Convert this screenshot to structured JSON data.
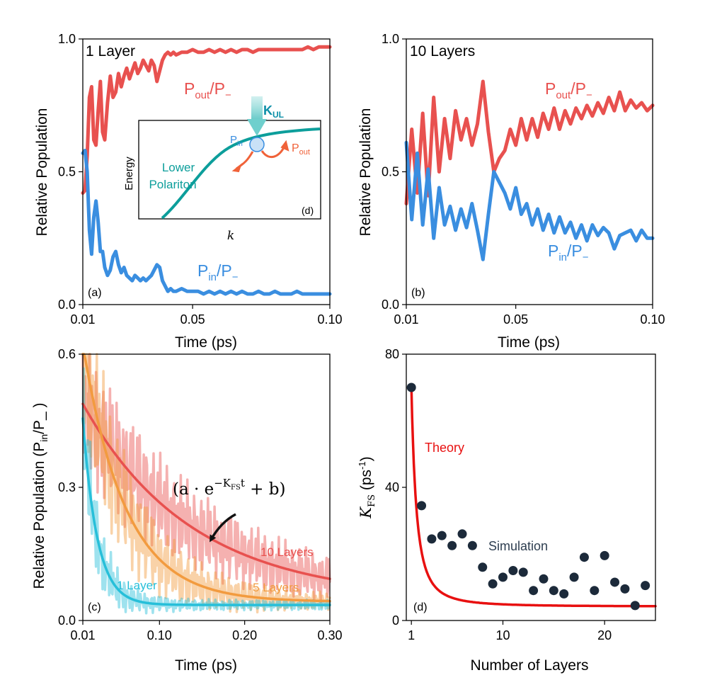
{
  "colors": {
    "out": "#e8514f",
    "in": "#3a8ee0",
    "teal": "#0c9e9b",
    "cyan": "#27bfd9",
    "orange": "#f29b3f",
    "red": "#e81010",
    "dot": "#1c2a3a"
  },
  "chart_data": [
    {
      "panel": "a",
      "type": "line",
      "panel_label": "(a)",
      "header": "1 Layer",
      "xlabel": "Time (ps)",
      "ylabel": "Relative Population",
      "xlim": [
        0.01,
        0.1
      ],
      "ylim": [
        0.0,
        1.0
      ],
      "xticks": [
        "0.01",
        "0.05",
        "0.10"
      ],
      "yticks": [
        "0.0",
        "0.5",
        "1.0"
      ],
      "series": [
        {
          "name": "Pout/P-",
          "label_main": "P",
          "label_sub": "out",
          "label_tail": "/P",
          "label_sub2": "−",
          "color_key": "out",
          "x": [
            0.01,
            0.0108,
            0.0116,
            0.0124,
            0.0132,
            0.014,
            0.0148,
            0.0156,
            0.0164,
            0.0172,
            0.018,
            0.019,
            0.02,
            0.021,
            0.022,
            0.023,
            0.024,
            0.025,
            0.026,
            0.027,
            0.028,
            0.029,
            0.03,
            0.031,
            0.032,
            0.033,
            0.034,
            0.035,
            0.036,
            0.037,
            0.038,
            0.039,
            0.04,
            0.041,
            0.042,
            0.043,
            0.044,
            0.046,
            0.048,
            0.05,
            0.052,
            0.054,
            0.056,
            0.058,
            0.06,
            0.062,
            0.064,
            0.066,
            0.068,
            0.07,
            0.072,
            0.074,
            0.076,
            0.078,
            0.08,
            0.082,
            0.084,
            0.086,
            0.088,
            0.09,
            0.092,
            0.094,
            0.096,
            0.098,
            0.1
          ],
          "values": [
            0.42,
            0.43,
            0.56,
            0.78,
            0.82,
            0.62,
            0.6,
            0.73,
            0.84,
            0.65,
            0.62,
            0.76,
            0.86,
            0.78,
            0.8,
            0.87,
            0.82,
            0.86,
            0.89,
            0.85,
            0.88,
            0.91,
            0.87,
            0.89,
            0.92,
            0.9,
            0.88,
            0.92,
            0.9,
            0.84,
            0.88,
            0.92,
            0.94,
            0.95,
            0.94,
            0.95,
            0.94,
            0.95,
            0.95,
            0.96,
            0.95,
            0.95,
            0.96,
            0.95,
            0.96,
            0.95,
            0.96,
            0.95,
            0.96,
            0.96,
            0.95,
            0.96,
            0.96,
            0.96,
            0.96,
            0.96,
            0.96,
            0.96,
            0.96,
            0.96,
            0.97,
            0.96,
            0.97,
            0.97,
            0.97
          ]
        },
        {
          "name": "Pin/P-",
          "label_main": "P",
          "label_sub": "in",
          "label_tail": "/P",
          "label_sub2": "−",
          "color_key": "in",
          "x": [
            0.01,
            0.0108,
            0.0116,
            0.0124,
            0.0132,
            0.014,
            0.0148,
            0.0156,
            0.0164,
            0.0172,
            0.018,
            0.019,
            0.02,
            0.021,
            0.022,
            0.023,
            0.024,
            0.025,
            0.026,
            0.027,
            0.028,
            0.029,
            0.03,
            0.031,
            0.032,
            0.033,
            0.034,
            0.035,
            0.036,
            0.037,
            0.038,
            0.039,
            0.04,
            0.041,
            0.042,
            0.043,
            0.044,
            0.046,
            0.048,
            0.05,
            0.052,
            0.054,
            0.056,
            0.058,
            0.06,
            0.062,
            0.064,
            0.066,
            0.068,
            0.07,
            0.072,
            0.074,
            0.076,
            0.078,
            0.08,
            0.082,
            0.084,
            0.086,
            0.088,
            0.09,
            0.092,
            0.094,
            0.096,
            0.098,
            0.1
          ],
          "values": [
            0.57,
            0.58,
            0.5,
            0.28,
            0.19,
            0.33,
            0.39,
            0.31,
            0.2,
            0.2,
            0.14,
            0.11,
            0.13,
            0.18,
            0.2,
            0.15,
            0.12,
            0.14,
            0.11,
            0.1,
            0.09,
            0.11,
            0.1,
            0.09,
            0.1,
            0.09,
            0.1,
            0.11,
            0.13,
            0.15,
            0.14,
            0.09,
            0.07,
            0.05,
            0.06,
            0.05,
            0.05,
            0.06,
            0.05,
            0.05,
            0.05,
            0.04,
            0.05,
            0.04,
            0.05,
            0.04,
            0.05,
            0.04,
            0.05,
            0.04,
            0.04,
            0.05,
            0.04,
            0.04,
            0.05,
            0.04,
            0.04,
            0.04,
            0.05,
            0.04,
            0.04,
            0.04,
            0.04,
            0.04,
            0.04
          ]
        }
      ],
      "inset": {
        "panel_label": "(d)",
        "xlabel": "k",
        "ylabel": "Energy",
        "branch_label_line1": "Lower",
        "branch_label_line2": "Polariton",
        "kul_main": "K",
        "kul_sub": "UL",
        "pin_main": "P",
        "pin_sub": "in",
        "pout_main": "P",
        "pout_sub": "out"
      }
    },
    {
      "panel": "b",
      "type": "line",
      "panel_label": "(b)",
      "header": "10 Layers",
      "xlabel": "Time (ps)",
      "ylabel": "Relative Population",
      "xlim": [
        0.01,
        0.1
      ],
      "ylim": [
        0.0,
        1.0
      ],
      "xticks": [
        "0.01",
        "0.05",
        "0.10"
      ],
      "yticks": [
        "0.0",
        "0.5",
        "1.0"
      ],
      "series": [
        {
          "name": "Pout/P-",
          "label_main": "P",
          "label_sub": "out",
          "label_tail": "/P",
          "label_sub2": "−",
          "color_key": "out",
          "x": [
            0.01,
            0.012,
            0.014,
            0.016,
            0.018,
            0.02,
            0.022,
            0.024,
            0.026,
            0.028,
            0.03,
            0.032,
            0.034,
            0.036,
            0.038,
            0.04,
            0.042,
            0.044,
            0.046,
            0.048,
            0.05,
            0.052,
            0.054,
            0.056,
            0.058,
            0.06,
            0.062,
            0.064,
            0.066,
            0.068,
            0.07,
            0.072,
            0.074,
            0.076,
            0.078,
            0.08,
            0.082,
            0.084,
            0.086,
            0.088,
            0.09,
            0.092,
            0.094,
            0.096,
            0.098,
            0.1
          ],
          "values": [
            0.38,
            0.66,
            0.42,
            0.72,
            0.41,
            0.78,
            0.5,
            0.7,
            0.55,
            0.73,
            0.62,
            0.7,
            0.6,
            0.68,
            0.84,
            0.65,
            0.5,
            0.55,
            0.58,
            0.66,
            0.6,
            0.7,
            0.62,
            0.7,
            0.63,
            0.72,
            0.66,
            0.74,
            0.66,
            0.73,
            0.68,
            0.74,
            0.7,
            0.75,
            0.71,
            0.76,
            0.72,
            0.78,
            0.73,
            0.8,
            0.73,
            0.77,
            0.74,
            0.76,
            0.73,
            0.75
          ]
        },
        {
          "name": "Pin/P-",
          "label_main": "P",
          "label_sub": "in",
          "label_tail": "/P",
          "label_sub2": "−",
          "color_key": "in",
          "x": [
            0.01,
            0.012,
            0.014,
            0.016,
            0.018,
            0.02,
            0.022,
            0.024,
            0.026,
            0.028,
            0.03,
            0.032,
            0.034,
            0.036,
            0.038,
            0.04,
            0.042,
            0.044,
            0.046,
            0.048,
            0.05,
            0.052,
            0.054,
            0.056,
            0.058,
            0.06,
            0.062,
            0.064,
            0.066,
            0.068,
            0.07,
            0.072,
            0.074,
            0.076,
            0.078,
            0.08,
            0.082,
            0.084,
            0.086,
            0.088,
            0.09,
            0.092,
            0.094,
            0.096,
            0.098,
            0.1
          ],
          "values": [
            0.61,
            0.32,
            0.57,
            0.3,
            0.51,
            0.25,
            0.44,
            0.3,
            0.37,
            0.28,
            0.36,
            0.29,
            0.38,
            0.28,
            0.17,
            0.34,
            0.5,
            0.46,
            0.42,
            0.36,
            0.44,
            0.34,
            0.38,
            0.3,
            0.36,
            0.28,
            0.34,
            0.27,
            0.33,
            0.27,
            0.31,
            0.25,
            0.3,
            0.24,
            0.3,
            0.26,
            0.29,
            0.27,
            0.21,
            0.26,
            0.27,
            0.28,
            0.24,
            0.28,
            0.25,
            0.25
          ]
        }
      ]
    },
    {
      "panel": "c",
      "type": "line",
      "panel_label": "(c)",
      "xlabel": "Time (ps)",
      "ylabel_main": "Relative Population (P",
      "ylabel_sub": "in",
      "ylabel_tail": "/P_  )",
      "xlim": [
        0.01,
        0.3
      ],
      "ylim": [
        0.0,
        0.6
      ],
      "xticks": [
        "0.01",
        "0.10",
        "0.20",
        "0.30"
      ],
      "yticks": [
        "0.0",
        "0.3",
        "0.6"
      ],
      "equation_text": "(a · e",
      "equation_exp": "−K",
      "equation_exp_sub": "FS",
      "equation_exp_tail": "t",
      "equation_tail": " + b)",
      "series": [
        {
          "name": "1 Layer",
          "color_key": "cyan",
          "fit": {
            "a": 0.42,
            "K": 60,
            "b": 0.035
          }
        },
        {
          "name": "5 Layers",
          "color_key": "orange",
          "fit": {
            "a": 0.58,
            "K": 20,
            "b": 0.042
          }
        },
        {
          "name": "10 Layers",
          "color_key": "out",
          "fit": {
            "a": 0.44,
            "K": 7.8,
            "b": 0.048
          }
        }
      ]
    },
    {
      "panel": "d",
      "type": "scatter",
      "panel_label": "(d)",
      "xlabel": "Number of Layers",
      "ylabel_main": "K",
      "ylabel_sub": "FS",
      "ylabel_tail": " (ps",
      "ylabel_sup": "-1",
      "ylabel_end": ")",
      "xlim": [
        0.5,
        25
      ],
      "ylim": [
        0,
        80
      ],
      "xticks": [
        "1",
        "10",
        "20"
      ],
      "yticks": [
        "0",
        "40",
        "80"
      ],
      "theory_label": "Theory",
      "simulation_label": "Simulation",
      "theory": {
        "A": 66,
        "B": 4.2,
        "color_key": "red"
      },
      "x": [
        1,
        2,
        3,
        4,
        5,
        6,
        7,
        8,
        9,
        10,
        11,
        12,
        13,
        14,
        15,
        16,
        17,
        18,
        19,
        20,
        21,
        22,
        23,
        24
      ],
      "values": [
        70,
        34.5,
        24.5,
        25.5,
        22.5,
        26,
        22.5,
        16,
        11,
        13,
        15,
        14.5,
        9,
        12.5,
        9,
        8,
        13,
        19,
        9,
        19.5,
        11.5,
        9.5,
        4.5,
        10.5
      ]
    }
  ]
}
